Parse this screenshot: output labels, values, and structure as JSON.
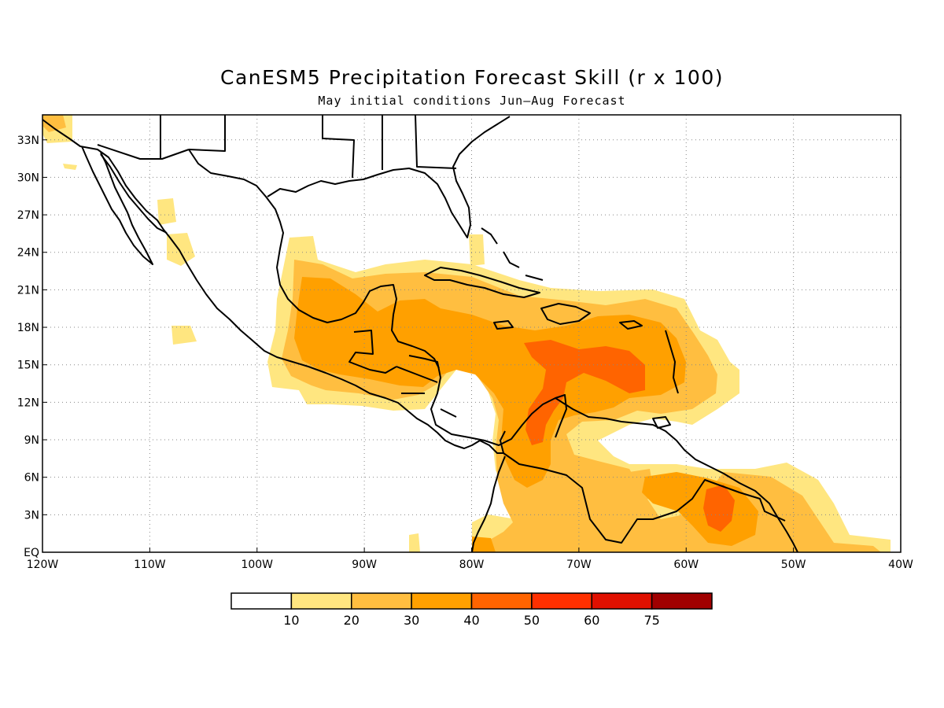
{
  "title": "CanESM5 Precipitation Forecast Skill (r x 100)",
  "subtitle": "May initial conditions  Jun–Aug Forecast",
  "lon_labels": [
    "120W",
    "110W",
    "100W",
    "90W",
    "80W",
    "70W",
    "60W",
    "50W",
    "40W"
  ],
  "lat_labels": [
    "EQ",
    "3N",
    "6N",
    "9N",
    "12N",
    "15N",
    "18N",
    "21N",
    "24N",
    "27N",
    "30N",
    "33N"
  ],
  "lon_range": [
    -120,
    -40
  ],
  "lat_range": [
    0,
    35
  ],
  "colorbar": {
    "labels": [
      "10",
      "20",
      "30",
      "40",
      "50",
      "60",
      "75"
    ],
    "colors": [
      "#ffffff",
      "#ffe680",
      "#ffbe40",
      "#ffa000",
      "#ff6400",
      "#ff3000",
      "#e01000",
      "#a00000"
    ]
  }
}
